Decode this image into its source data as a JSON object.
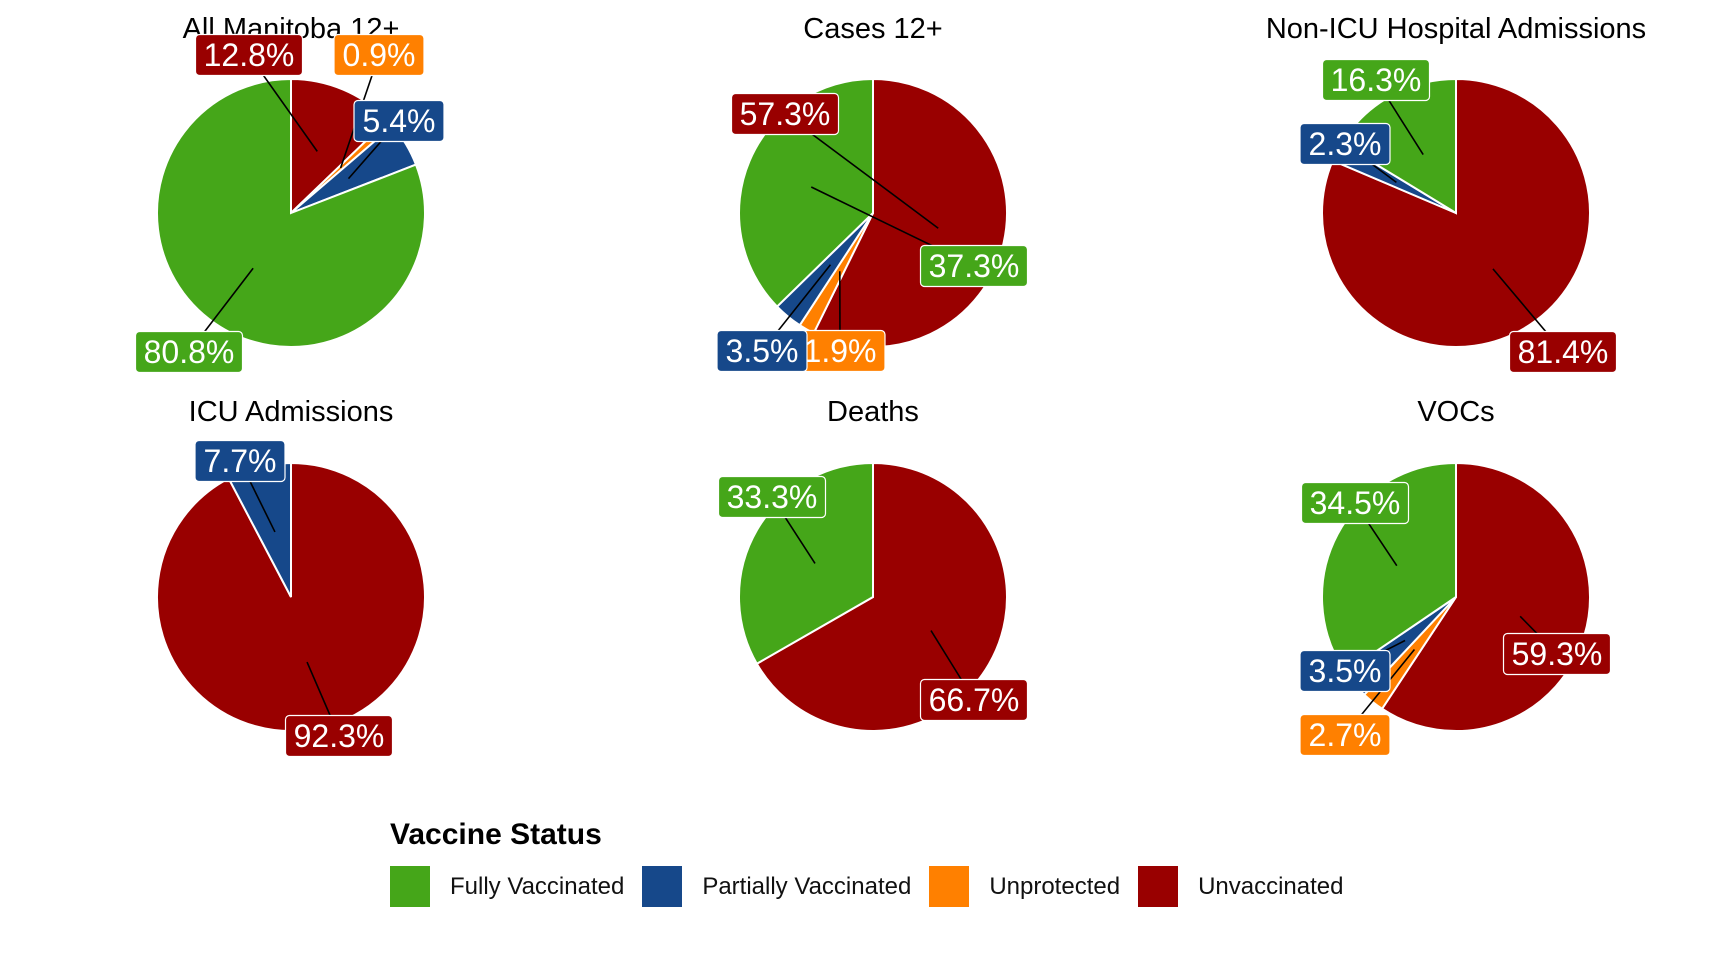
{
  "chart_data": {
    "type": "pie",
    "legend": {
      "title": "Vaccine Status",
      "position": "bottom",
      "entries": [
        {
          "name": "Fully Vaccinated",
          "color": "#45A619"
        },
        {
          "name": "Partially Vaccinated",
          "color": "#16488A"
        },
        {
          "name": "Unprotected",
          "color": "#FF8000"
        },
        {
          "name": "Unvaccinated",
          "color": "#990000"
        }
      ]
    },
    "slice_order_clockwise_from_top": [
      "Unvaccinated",
      "Unprotected",
      "Partially Vaccinated",
      "Fully Vaccinated"
    ],
    "panels": [
      {
        "title": "All Manitoba 12+",
        "slices": [
          {
            "category": "Unvaccinated",
            "value": 12.8,
            "label": "12.8%"
          },
          {
            "category": "Unprotected",
            "value": 0.9,
            "label": "0.9%"
          },
          {
            "category": "Partially Vaccinated",
            "value": 5.4,
            "label": "5.4%"
          },
          {
            "category": "Fully Vaccinated",
            "value": 80.8,
            "label": "80.8%"
          }
        ]
      },
      {
        "title": "Cases 12+",
        "slices": [
          {
            "category": "Unvaccinated",
            "value": 57.3,
            "label": "57.3%"
          },
          {
            "category": "Unprotected",
            "value": 1.9,
            "label": "1.9%"
          },
          {
            "category": "Partially Vaccinated",
            "value": 3.5,
            "label": "3.5%"
          },
          {
            "category": "Fully Vaccinated",
            "value": 37.3,
            "label": "37.3%"
          }
        ]
      },
      {
        "title": "Non-ICU Hospital Admissions",
        "slices": [
          {
            "category": "Unvaccinated",
            "value": 81.4,
            "label": "81.4%"
          },
          {
            "category": "Partially Vaccinated",
            "value": 2.3,
            "label": "2.3%"
          },
          {
            "category": "Fully Vaccinated",
            "value": 16.3,
            "label": "16.3%"
          }
        ]
      },
      {
        "title": "ICU Admissions",
        "slices": [
          {
            "category": "Unvaccinated",
            "value": 92.3,
            "label": "92.3%"
          },
          {
            "category": "Partially Vaccinated",
            "value": 7.7,
            "label": "7.7%"
          }
        ]
      },
      {
        "title": "Deaths",
        "slices": [
          {
            "category": "Unvaccinated",
            "value": 66.7,
            "label": "66.7%"
          },
          {
            "category": "Fully Vaccinated",
            "value": 33.3,
            "label": "33.3%"
          }
        ]
      },
      {
        "title": "VOCs",
        "slices": [
          {
            "category": "Unvaccinated",
            "value": 59.3,
            "label": "59.3%"
          },
          {
            "category": "Unprotected",
            "value": 2.7,
            "label": "2.7%"
          },
          {
            "category": "Partially Vaccinated",
            "value": 3.5,
            "label": "3.5%"
          },
          {
            "category": "Fully Vaccinated",
            "value": 34.5,
            "label": "34.5%"
          }
        ]
      }
    ]
  }
}
